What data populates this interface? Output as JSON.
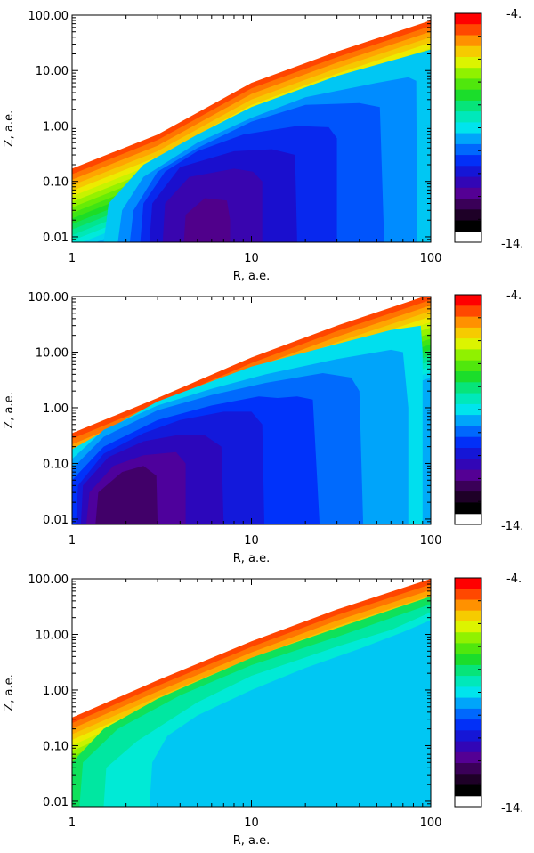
{
  "chart_data": [
    {
      "type": "heatmap",
      "xlabel": "R, a.e.",
      "ylabel": "Z, a.e.",
      "x_scale": "log",
      "y_scale": "log",
      "xlim": [
        1,
        100
      ],
      "ylim": [
        0.008,
        100
      ],
      "x_ticks": [
        "1",
        "10",
        "100"
      ],
      "y_ticks": [
        "0.01",
        "0.10",
        "1.00",
        "10.00",
        "100.00"
      ],
      "colorbar": {
        "max_label": "-4.",
        "min_label": "-14.",
        "range": [
          -14,
          -4
        ],
        "levels": 20
      },
      "surface": [
        [
          1,
          0.17
        ],
        [
          3,
          0.7
        ],
        [
          10,
          6
        ],
        [
          30,
          22
        ],
        [
          100,
          80
        ]
      ],
      "interior": [
        {
          "level": -12.5,
          "contour": [
            [
              4.2,
              0.008
            ],
            [
              4.3,
              0.025
            ],
            [
              5.5,
              0.05
            ],
            [
              7.3,
              0.045
            ],
            [
              7.6,
              0.02
            ],
            [
              7.6,
              0.008
            ]
          ]
        },
        {
          "level": -12.0,
          "contour": [
            [
              3.2,
              0.008
            ],
            [
              3.3,
              0.04
            ],
            [
              4.5,
              0.12
            ],
            [
              8,
              0.17
            ],
            [
              10.2,
              0.15
            ],
            [
              11.5,
              0.1
            ],
            [
              11.5,
              0.008
            ]
          ]
        },
        {
          "level": -11.5,
          "contour": [
            [
              2.7,
              0.008
            ],
            [
              2.8,
              0.04
            ],
            [
              4,
              0.18
            ],
            [
              8,
              0.35
            ],
            [
              13,
              0.38
            ],
            [
              17.5,
              0.3
            ],
            [
              18,
              0.008
            ]
          ]
        },
        {
          "level": -11.0,
          "contour": [
            [
              2.4,
              0.008
            ],
            [
              2.5,
              0.04
            ],
            [
              3.3,
              0.15
            ],
            [
              5,
              0.35
            ],
            [
              9,
              0.7
            ],
            [
              18,
              1
            ],
            [
              27,
              0.95
            ],
            [
              30,
              0.6
            ],
            [
              30,
              0.008
            ]
          ]
        },
        {
          "level": -10.5,
          "contour": [
            [
              2.1,
              0.008
            ],
            [
              2.2,
              0.03
            ],
            [
              3,
              0.15
            ],
            [
              5,
              0.4
            ],
            [
              10,
              1.2
            ],
            [
              20,
              2.4
            ],
            [
              40,
              2.6
            ],
            [
              52,
              2.2
            ],
            [
              55,
              0.008
            ]
          ]
        },
        {
          "level": -10.0,
          "contour": [
            [
              1.8,
              0.008
            ],
            [
              1.9,
              0.03
            ],
            [
              2.5,
              0.12
            ],
            [
              5,
              0.5
            ],
            [
              10,
              1.4
            ],
            [
              20,
              3.3
            ],
            [
              50,
              6
            ],
            [
              75,
              7.6
            ],
            [
              83,
              6.5
            ],
            [
              84,
              0.008
            ]
          ]
        },
        {
          "level": -9.5,
          "contour": [
            [
              1.5,
              0.008
            ],
            [
              1.6,
              0.04
            ],
            [
              2.5,
              0.2
            ],
            [
              5,
              0.7
            ],
            [
              10,
              2.2
            ],
            [
              30,
              8
            ],
            [
              60,
              15
            ],
            [
              100,
              24
            ],
            [
              100,
              0.008
            ]
          ]
        }
      ]
    },
    {
      "type": "heatmap",
      "xlabel": "R, a.e.",
      "ylabel": "Z, a.e.",
      "x_scale": "log",
      "y_scale": "log",
      "xlim": [
        1,
        100
      ],
      "ylim": [
        0.008,
        100
      ],
      "x_ticks": [
        "1",
        "10",
        "100"
      ],
      "y_ticks": [
        "0.01",
        "0.10",
        "1.00",
        "10.00",
        "100.00"
      ],
      "colorbar": {
        "max_label": "-4.",
        "min_label": "-14.",
        "range": [
          -14,
          -4
        ],
        "levels": 20
      },
      "surface": [
        [
          1,
          0.35
        ],
        [
          3,
          1.5
        ],
        [
          10,
          8
        ],
        [
          30,
          30
        ],
        [
          100,
          110
        ]
      ],
      "interior": [
        {
          "level": -12.8,
          "contour": [
            [
              1.35,
              0.008
            ],
            [
              1.4,
              0.03
            ],
            [
              1.9,
              0.07
            ],
            [
              2.5,
              0.09
            ],
            [
              2.95,
              0.06
            ],
            [
              3.0,
              0.008
            ]
          ]
        },
        {
          "level": -12.3,
          "contour": [
            [
              1.2,
              0.008
            ],
            [
              1.25,
              0.03
            ],
            [
              1.7,
              0.09
            ],
            [
              2.5,
              0.14
            ],
            [
              3.8,
              0.16
            ],
            [
              4.3,
              0.1
            ],
            [
              4.3,
              0.008
            ]
          ]
        },
        {
          "level": -11.8,
          "contour": [
            [
              1.12,
              0.008
            ],
            [
              1.15,
              0.04
            ],
            [
              1.6,
              0.13
            ],
            [
              2.5,
              0.25
            ],
            [
              4,
              0.33
            ],
            [
              5.5,
              0.32
            ],
            [
              6.8,
              0.2
            ],
            [
              7.0,
              0.008
            ]
          ]
        },
        {
          "level": -11.3,
          "contour": [
            [
              1.05,
              0.008
            ],
            [
              1.08,
              0.04
            ],
            [
              1.5,
              0.15
            ],
            [
              2.5,
              0.35
            ],
            [
              4,
              0.6
            ],
            [
              7,
              0.85
            ],
            [
              10,
              0.85
            ],
            [
              11.5,
              0.5
            ],
            [
              11.8,
              0.008
            ]
          ]
        },
        {
          "level": -10.8,
          "contour": [
            [
              1.0,
              0.008
            ],
            [
              1.0,
              0.05
            ],
            [
              1.5,
              0.2
            ],
            [
              3,
              0.6
            ],
            [
              6,
              1.1
            ],
            [
              11,
              1.6
            ],
            [
              14,
              1.5
            ],
            [
              18,
              1.6
            ],
            [
              22,
              1.4
            ],
            [
              24,
              0.008
            ]
          ]
        },
        {
          "level": -10.3,
          "contour": [
            [
              1.0,
              0.08
            ],
            [
              1.5,
              0.3
            ],
            [
              3,
              0.9
            ],
            [
              6,
              1.7
            ],
            [
              12,
              2.8
            ],
            [
              25,
              4.2
            ],
            [
              36,
              3.5
            ],
            [
              40,
              2
            ],
            [
              42,
              0.008
            ],
            [
              1.0,
              0.008
            ]
          ]
        },
        {
          "level": -9.8,
          "contour": [
            [
              1.0,
              0.12
            ],
            [
              1.5,
              0.4
            ],
            [
              3,
              1.1
            ],
            [
              6,
              2.2
            ],
            [
              12,
              4
            ],
            [
              30,
              7.5
            ],
            [
              60,
              11
            ],
            [
              70,
              10
            ],
            [
              75,
              1
            ],
            [
              75,
              0.008
            ],
            [
              1.0,
              0.008
            ]
          ]
        },
        {
          "level": -9.3,
          "contour": [
            [
              1.0,
              0.18
            ],
            [
              3,
              1.3
            ],
            [
              10,
              5.5
            ],
            [
              30,
              14
            ],
            [
              60,
              25
            ],
            [
              88,
              30
            ],
            [
              90,
              10
            ],
            [
              90,
              0.008
            ],
            [
              1.0,
              0.008
            ]
          ]
        }
      ]
    },
    {
      "type": "heatmap",
      "xlabel": "R, a.e.",
      "ylabel": "Z, a.e.",
      "x_scale": "log",
      "y_scale": "log",
      "xlim": [
        1,
        100
      ],
      "ylim": [
        0.008,
        100
      ],
      "x_ticks": [
        "1",
        "10",
        "100"
      ],
      "y_ticks": [
        "0.01",
        "0.10",
        "1.00",
        "10.00",
        "100.00"
      ],
      "colorbar": {
        "max_label": "-4.",
        "min_label": "-14.",
        "range": [
          -14,
          -4
        ],
        "levels": 20
      },
      "surface": [
        [
          1,
          0.32
        ],
        [
          3,
          1.5
        ],
        [
          10,
          7.5
        ],
        [
          30,
          28
        ],
        [
          100,
          100
        ]
      ],
      "interior": [
        {
          "level": -9.5,
          "contour": [
            [
              2.7,
              0.008
            ],
            [
              2.8,
              0.05
            ],
            [
              3.4,
              0.15
            ],
            [
              5,
              0.35
            ],
            [
              10,
              1.0
            ],
            [
              20,
              2.5
            ],
            [
              40,
              5.5
            ],
            [
              70,
              11
            ],
            [
              100,
              18
            ],
            [
              100,
              0.008
            ]
          ]
        },
        {
          "level": -9.0,
          "contour": [
            [
              1.5,
              0.008
            ],
            [
              1.55,
              0.04
            ],
            [
              2.3,
              0.12
            ],
            [
              5,
              0.6
            ],
            [
              10,
              1.8
            ],
            [
              30,
              6
            ],
            [
              60,
              12
            ],
            [
              100,
              25
            ],
            [
              100,
              0.008
            ]
          ]
        },
        {
          "level": -8.5,
          "contour": [
            [
              1.1,
              0.008
            ],
            [
              1.15,
              0.05
            ],
            [
              1.8,
              0.2
            ],
            [
              4,
              0.8
            ],
            [
              10,
              2.8
            ],
            [
              30,
              9
            ],
            [
              100,
              35
            ],
            [
              100,
              0.008
            ]
          ]
        },
        {
          "level": -8.0,
          "contour": [
            [
              1.0,
              0.05
            ],
            [
              1.5,
              0.2
            ],
            [
              3,
              0.7
            ],
            [
              10,
              3.8
            ],
            [
              30,
              13
            ],
            [
              100,
              48
            ],
            [
              100,
              0.008
            ],
            [
              1.0,
              0.008
            ]
          ]
        }
      ]
    }
  ]
}
